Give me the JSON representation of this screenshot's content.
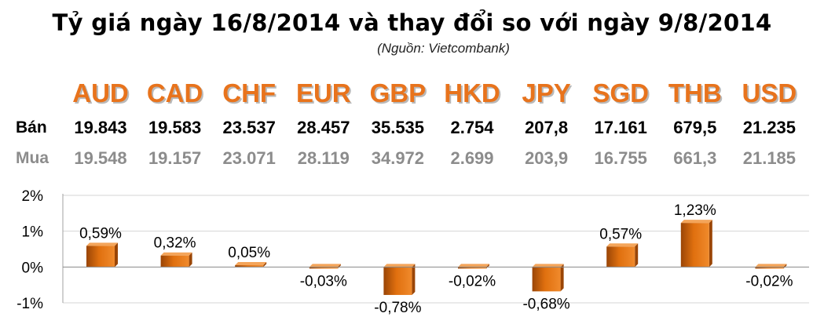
{
  "header": {
    "title": "Tỷ giá ngày 16/8/2014 và thay đổi so với ngày 9/8/2014",
    "source": "(Nguồn: Vietcombank)"
  },
  "rates": {
    "sell_label": "Bán",
    "buy_label": "Mua",
    "currencies": [
      "AUD",
      "CAD",
      "CHF",
      "EUR",
      "GBP",
      "HKD",
      "JPY",
      "SGD",
      "THB",
      "USD"
    ],
    "sell": [
      "19.843",
      "19.583",
      "23.537",
      "28.457",
      "35.535",
      "2.754",
      "207,8",
      "17.161",
      "679,5",
      "21.235"
    ],
    "buy": [
      "19.548",
      "19.157",
      "23.071",
      "28.119",
      "34.972",
      "2.699",
      "203,9",
      "16.755",
      "661,3",
      "21.185"
    ]
  },
  "colors": {
    "currency_code": "#e8731c",
    "bar": "#e0700f",
    "bar_dark": "#9a4506",
    "sell_text": "#000000",
    "buy_text": "#8c8c8c"
  },
  "chart_data": {
    "type": "bar",
    "categories": [
      "AUD",
      "CAD",
      "CHF",
      "EUR",
      "GBP",
      "HKD",
      "JPY",
      "SGD",
      "THB",
      "USD"
    ],
    "values": [
      0.59,
      0.32,
      0.05,
      -0.03,
      -0.78,
      -0.02,
      -0.68,
      0.57,
      1.23,
      -0.02
    ],
    "labels": [
      "0,59%",
      "0,32%",
      "0,05%",
      "-0,03%",
      "-0,78%",
      "-0,02%",
      "-0,68%",
      "0,57%",
      "1,23%",
      "-0,02%"
    ],
    "ylim": [
      -1,
      2
    ],
    "yticks": [
      2,
      1,
      0,
      -1
    ],
    "ytick_labels": [
      "2%",
      "1%",
      "0%",
      "-1%"
    ],
    "grid": true,
    "legend": "none"
  }
}
